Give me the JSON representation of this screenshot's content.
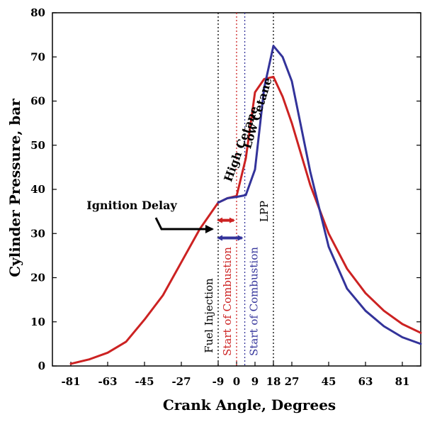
{
  "chart_data": {
    "type": "line",
    "title": "",
    "xlabel": "Crank Angle, Degrees",
    "ylabel": "Cylinder Pressure, bar",
    "xlim": [
      -90,
      90
    ],
    "ylim": [
      0,
      80
    ],
    "x_ticks": [
      -81,
      -63,
      -45,
      -27,
      -9,
      0,
      9,
      18,
      27,
      45,
      63,
      81
    ],
    "x_tick_labels": [
      "-81",
      "-63",
      "-45",
      "-27",
      "-9",
      "0",
      "9",
      "18",
      "27",
      "45",
      "63",
      "81"
    ],
    "y_ticks": [
      0,
      10,
      20,
      30,
      40,
      50,
      60,
      70,
      80
    ],
    "y_tick_labels": [
      "0",
      "10",
      "20",
      "30",
      "40",
      "50",
      "60",
      "70",
      "80"
    ],
    "grid": false,
    "series": [
      {
        "name": "High Cetane",
        "color": "#cc2222",
        "x": [
          -81,
          -72,
          -63,
          -54,
          -45,
          -36,
          -27,
          -18,
          -9,
          -4.5,
          0,
          4.5,
          9,
          13.5,
          18,
          22.5,
          27,
          36,
          45,
          54,
          63,
          72,
          81,
          90
        ],
        "y": [
          0.5,
          1.5,
          3,
          5.5,
          10.5,
          16,
          23.5,
          31,
          37,
          38,
          38.5,
          47,
          62,
          65,
          65.5,
          61,
          55,
          41,
          30,
          22,
          16.5,
          12.5,
          9.5,
          7.5
        ]
      },
      {
        "name": "Low Cetane",
        "color": "#33339a",
        "x": [
          -9,
          -4.5,
          0,
          4.5,
          9,
          13.5,
          18,
          22.5,
          27,
          36,
          45,
          54,
          63,
          72,
          81,
          90
        ],
        "y": [
          37,
          38,
          38.3,
          38.7,
          44.5,
          63,
          72.5,
          70,
          64.5,
          44,
          27,
          17.5,
          12.5,
          9,
          6.5,
          5
        ]
      }
    ],
    "vertical_lines": [
      {
        "x": -9,
        "label": "Fuel Injection",
        "color": "#000000"
      },
      {
        "x": 0,
        "label": "Start of Combustion",
        "color": "#cc2222"
      },
      {
        "x": 4,
        "label": "Start of Combustion",
        "color": "#33339a"
      },
      {
        "x": 18,
        "label": "LPP",
        "color": "#000000"
      }
    ],
    "annotations": [
      {
        "text": "Ignition Delay",
        "x": -9,
        "y": 31
      },
      {
        "text": "High Cetane",
        "x": 4,
        "y": 50
      },
      {
        "text": "Low Cetane",
        "x": 12,
        "y": 57
      }
    ],
    "delay_arrows": [
      {
        "from": -9,
        "to": 0,
        "y": 33,
        "color": "#cc2222"
      },
      {
        "from": -9,
        "to": 4,
        "y": 29,
        "color": "#33339a"
      }
    ]
  }
}
